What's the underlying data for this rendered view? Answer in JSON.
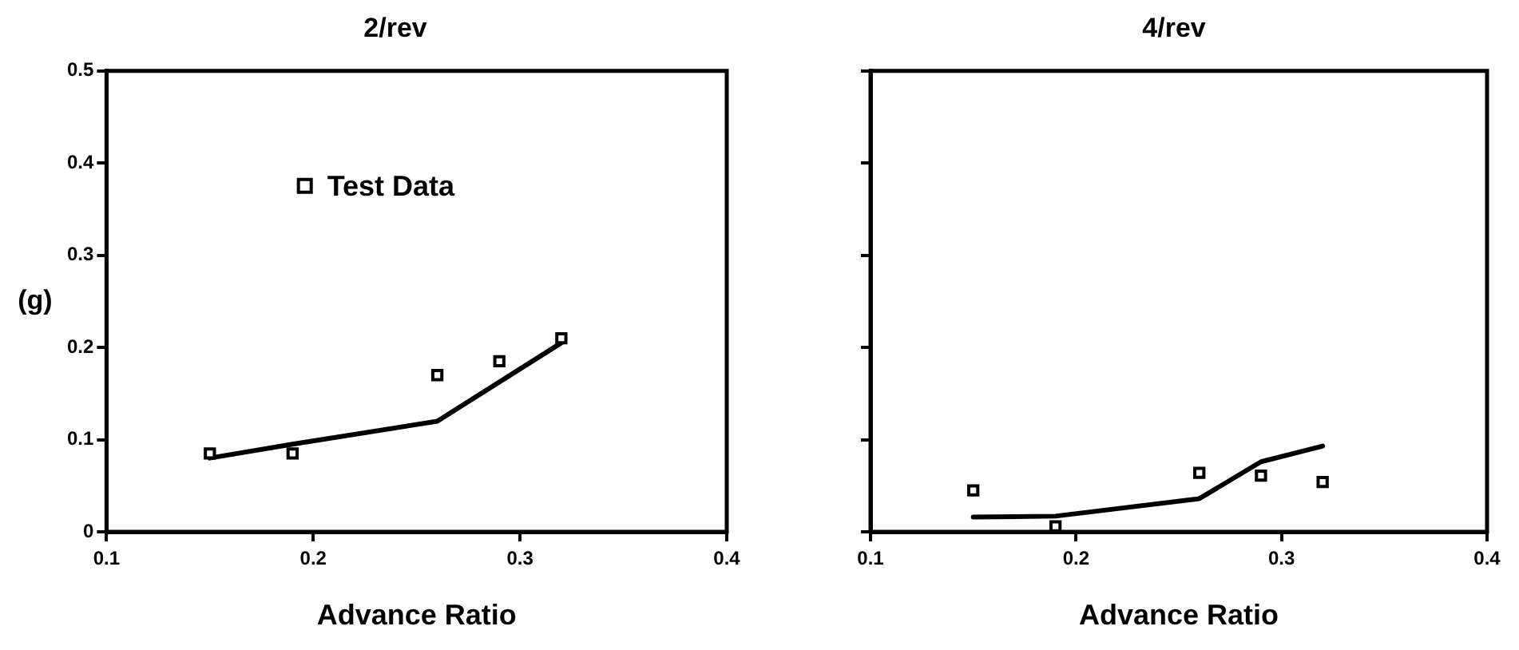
{
  "chart_data": [
    {
      "type": "line",
      "title": "2/rev",
      "xlabel": "Advance Ratio",
      "ylabel": "(g)",
      "xlim": [
        0.1,
        0.4
      ],
      "xticks": [
        0.1,
        0.2,
        0.3,
        0.4
      ],
      "ylim": [
        0,
        0.5
      ],
      "yticks": [
        0,
        0.1,
        0.2,
        0.3,
        0.4,
        0.5
      ],
      "grid": false,
      "legend": "top",
      "series": [
        {
          "type": "line",
          "x": [
            0.15,
            0.19,
            0.26,
            0.32
          ],
          "values": [
            0.08,
            0.095,
            0.12,
            0.205
          ],
          "color": "#000000",
          "marker": "none"
        },
        {
          "type": "scatter",
          "name": "Test Data",
          "x": [
            0.15,
            0.19,
            0.26,
            0.29,
            0.32
          ],
          "values": [
            0.085,
            0.085,
            0.17,
            0.185,
            0.21
          ],
          "color": "#000000",
          "marker": "square"
        }
      ]
    },
    {
      "type": "line",
      "title": "4/rev",
      "xlabel": "Advance Ratio",
      "xlim": [
        0.1,
        0.4
      ],
      "xticks": [
        0.1,
        0.2,
        0.3,
        0.4
      ],
      "ylim": [
        0,
        0.5
      ],
      "yticks": [
        0,
        0.1,
        0.2,
        0.3,
        0.4,
        0.5
      ],
      "grid": false,
      "tick_labels": "x",
      "series": [
        {
          "type": "line",
          "x": [
            0.15,
            0.19,
            0.26,
            0.29,
            0.32
          ],
          "values": [
            0.016,
            0.017,
            0.036,
            0.076,
            0.093
          ],
          "color": "#000000",
          "marker": "none"
        },
        {
          "type": "scatter",
          "x": [
            0.15,
            0.19,
            0.26,
            0.29,
            0.32
          ],
          "values": [
            0.045,
            0.006,
            0.064,
            0.061,
            0.054
          ],
          "color": "#000000",
          "marker": "square"
        }
      ]
    }
  ]
}
